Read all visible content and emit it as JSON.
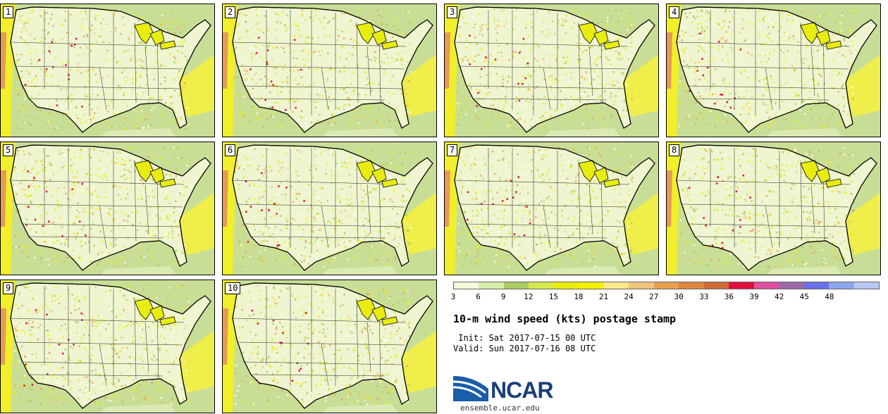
{
  "panels": [
    {
      "label": "1"
    },
    {
      "label": "2"
    },
    {
      "label": "3"
    },
    {
      "label": "4"
    },
    {
      "label": "5"
    },
    {
      "label": "6"
    },
    {
      "label": "7"
    },
    {
      "label": "8"
    },
    {
      "label": "9"
    },
    {
      "label": "10"
    }
  ],
  "colorbar": {
    "ticks": [
      "3",
      "6",
      "9",
      "12",
      "15",
      "18",
      "21",
      "24",
      "27",
      "30",
      "33",
      "36",
      "39",
      "42",
      "45",
      "48"
    ],
    "colors": [
      "#f4f9dd",
      "#d8eca9",
      "#a9cd63",
      "#d6e84a",
      "#e8ec10",
      "#f3ef08",
      "#fbe98a",
      "#f0c47a",
      "#e6a050",
      "#de8640",
      "#d06a34",
      "#e0103c",
      "#e050a0",
      "#9b6ba8",
      "#6a70e8",
      "#8ea6f0",
      "#b8c8f4"
    ]
  },
  "title": "10-m wind speed (kts) postage stamp",
  "init": " Init: Sat 2017-07-15 00 UTC",
  "valid": "Valid: Sun 2017-07-16 08 UTC",
  "logo": {
    "text": "NCAR",
    "icon": "ncar-logo-icon"
  },
  "site": "ensemble.ucar.edu"
}
